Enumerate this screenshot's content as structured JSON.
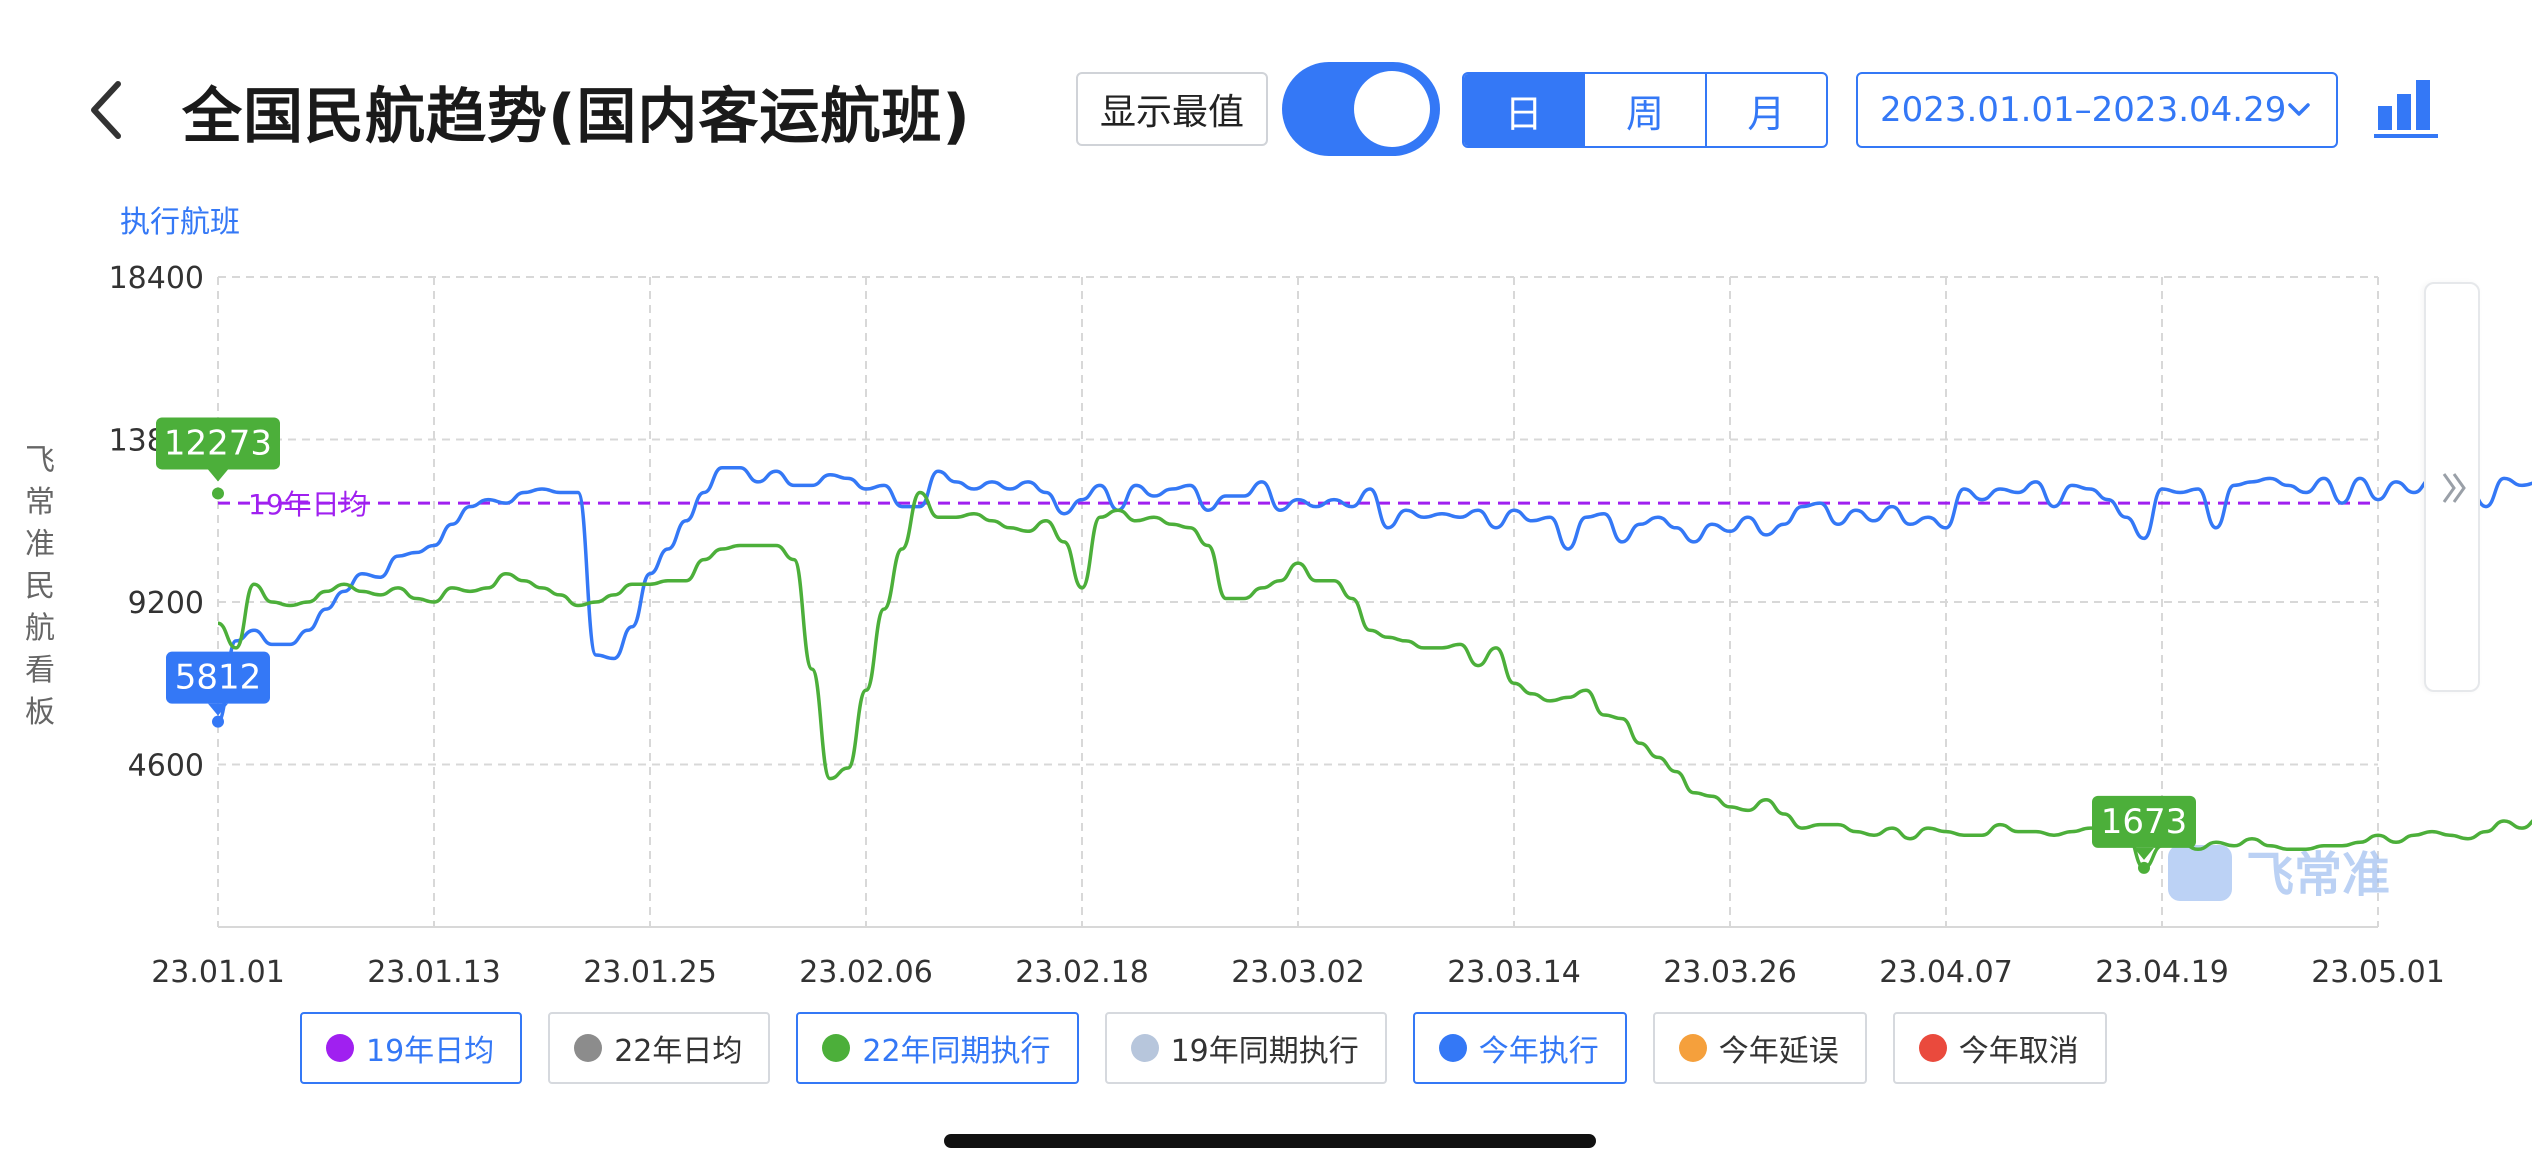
{
  "header": {
    "title": "全国民航趋势(国内客运航班)",
    "show_max_label": "显示最值",
    "show_max_on": true,
    "period_tabs": [
      "日",
      "周",
      "月"
    ],
    "period_selected": "日",
    "date_range": "2023.01.01–2023.04.29"
  },
  "side_label_chars": [
    "飞",
    "常",
    "准",
    "民",
    "航",
    "看",
    "板"
  ],
  "legend": [
    {
      "label": "19年日均",
      "color": "#a020f0",
      "active": true
    },
    {
      "label": "22年日均",
      "color": "#8c8c8c",
      "active": false
    },
    {
      "label": "22年同期执行",
      "color": "#4caf3a",
      "active": true
    },
    {
      "label": "19年同期执行",
      "color": "#b7c6dc",
      "active": false
    },
    {
      "label": "今年执行",
      "color": "#3478f6",
      "active": true
    },
    {
      "label": "今年延误",
      "color": "#f5a03c",
      "active": false
    },
    {
      "label": "今年取消",
      "color": "#ea4a3d",
      "active": false
    }
  ],
  "colors": {
    "accent": "#3478f6",
    "series_2022": "#4caf3a",
    "series_2023": "#3478f6",
    "avg_2019": "#a020f0",
    "grid": "#d8d8d8",
    "watermark": "#8fb4ee"
  },
  "watermark_text": "飞常准",
  "chart_data": {
    "type": "line",
    "title": "",
    "ylabel": "执行航班",
    "xlabel": "",
    "x_ticks": [
      "23.01.01",
      "23.01.13",
      "23.01.25",
      "23.02.06",
      "23.02.18",
      "23.03.02",
      "23.03.14",
      "23.03.26",
      "23.04.07",
      "23.04.19",
      "23.05.01"
    ],
    "y_ticks": [
      4600,
      9200,
      13800,
      18400
    ],
    "ylim": [
      0,
      18400
    ],
    "grid": true,
    "reference_lines": [
      {
        "name": "19年日均",
        "value": 12000,
        "color": "#a020f0",
        "style": "dashed"
      }
    ],
    "series": [
      {
        "name": "今年执行",
        "color": "#3478f6",
        "start_date": "23.01.01",
        "values": [
          5812,
          8100,
          8400,
          8000,
          8000,
          8400,
          9000,
          9500,
          10000,
          9900,
          10500,
          10600,
          10800,
          11400,
          11900,
          12100,
          12000,
          12300,
          12400,
          12300,
          12300,
          7700,
          7600,
          8500,
          10000,
          10700,
          11500,
          12300,
          13000,
          13000,
          12600,
          12900,
          12500,
          12500,
          12800,
          12700,
          12400,
          12500,
          11900,
          11900,
          12900,
          12600,
          12400,
          12600,
          12400,
          12600,
          12300,
          11700,
          12100,
          12500,
          11800,
          12500,
          12200,
          12400,
          12500,
          11800,
          12200,
          12200,
          12600,
          11800,
          12100,
          11900,
          12100,
          11900,
          12400,
          11300,
          11800,
          11600,
          11700,
          11600,
          11800,
          11300,
          11800,
          11500,
          11600,
          10700,
          11600,
          11700,
          10900,
          11400,
          11600,
          11300,
          10900,
          11400,
          11200,
          11600,
          11100,
          11400,
          11900,
          12000,
          11400,
          11800,
          11500,
          11900,
          11400,
          11600,
          11300,
          12400,
          12100,
          12400,
          12300,
          12600,
          11900,
          12500,
          12400,
          12100,
          11600,
          11000,
          12400,
          12300,
          12400,
          11300,
          12500,
          12600,
          12700,
          12500,
          12300,
          12700,
          12000,
          12700,
          12100,
          12600,
          12300,
          12700,
          12200,
          12500,
          11900,
          12700,
          12500,
          12600,
          12400,
          12800,
          12700,
          12700,
          12700,
          13200,
          13100,
          13400,
          13600,
          13650
        ]
      },
      {
        "name": "22年同期执行",
        "color": "#4caf3a",
        "start_date": "23.01.01",
        "values": [
          8600,
          7900,
          9700,
          9200,
          9100,
          9200,
          9500,
          9700,
          9500,
          9400,
          9600,
          9300,
          9200,
          9600,
          9500,
          9600,
          10000,
          9800,
          9600,
          9400,
          9100,
          9200,
          9400,
          9700,
          9700,
          9800,
          9800,
          10400,
          10700,
          10800,
          10800,
          10800,
          10400,
          7300,
          4200,
          4500,
          6700,
          9000,
          10700,
          12300,
          11600,
          11600,
          11700,
          11500,
          11300,
          11200,
          11500,
          10900,
          9600,
          11600,
          11800,
          11500,
          11600,
          11400,
          11300,
          10800,
          9300,
          9300,
          9600,
          9800,
          10300,
          9800,
          9800,
          9300,
          8400,
          8200,
          8100,
          7900,
          7900,
          8000,
          7400,
          7900,
          6900,
          6600,
          6400,
          6500,
          6700,
          6000,
          5900,
          5200,
          4800,
          4400,
          3800,
          3700,
          3400,
          3300,
          3600,
          3200,
          2800,
          2900,
          2900,
          2700,
          2600,
          2800,
          2500,
          2800,
          2700,
          2600,
          2600,
          2900,
          2700,
          2700,
          2600,
          2700,
          2800,
          2800,
          2700,
          1673,
          2300,
          2400,
          2200,
          2400,
          2300,
          2500,
          2300,
          2200,
          2200,
          2300,
          2300,
          2400,
          2600,
          2400,
          2600,
          2700,
          2600,
          2500,
          2700,
          3000,
          2800,
          3100,
          3100,
          3000,
          3300,
          3400,
          3600,
          3800,
          3900,
          4000,
          4200,
          4600
        ]
      }
    ],
    "extrema_labels": [
      {
        "series": "今年执行",
        "kind": "min",
        "value": 5812,
        "date": "23.01.01"
      },
      {
        "series": "今年执行",
        "kind": "max",
        "value": 13650
      },
      {
        "series": "22年同期执行",
        "kind": "max",
        "value": 12273,
        "date": "23.02.06"
      },
      {
        "series": "22年同期执行",
        "kind": "min",
        "value": 1673
      }
    ]
  }
}
